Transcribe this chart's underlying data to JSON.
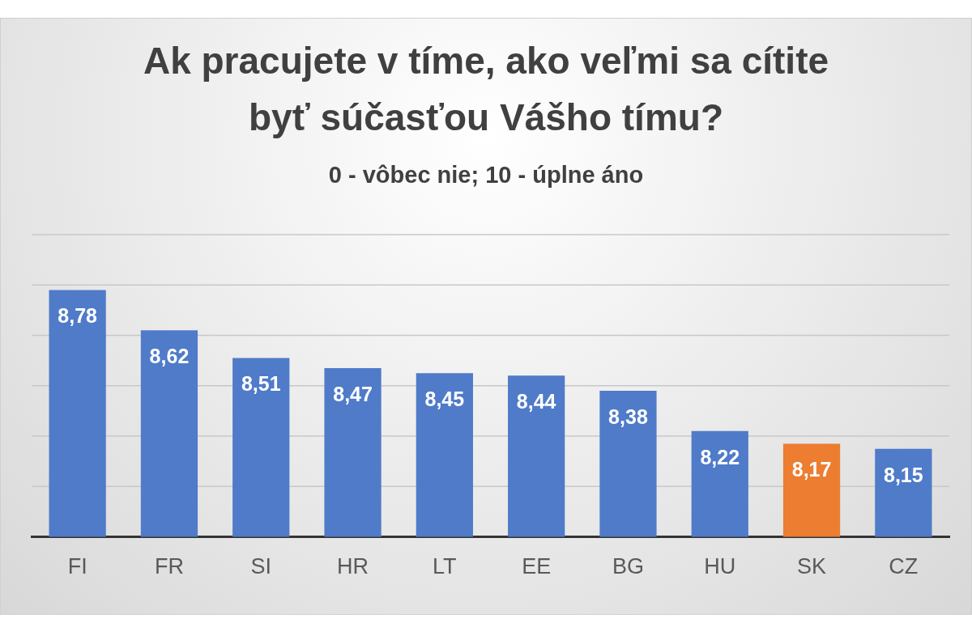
{
  "chart_data": {
    "type": "bar",
    "title": "Ak pracujete v tíme, ako veľmi sa cítite byť súčasťou Vášho tímu?",
    "subtitle": "0 - vôbec nie; 10 - úplne áno",
    "categories": [
      "FI",
      "FR",
      "SI",
      "HR",
      "LT",
      "EE",
      "BG",
      "HU",
      "SK",
      "CZ"
    ],
    "values": [
      8.78,
      8.62,
      8.51,
      8.47,
      8.45,
      8.44,
      8.38,
      8.22,
      8.17,
      8.15
    ],
    "colors": [
      "#4f7bc9",
      "#4f7bc9",
      "#4f7bc9",
      "#4f7bc9",
      "#4f7bc9",
      "#4f7bc9",
      "#4f7bc9",
      "#4f7bc9",
      "#ed7d31",
      "#4f7bc9"
    ],
    "value_labels": [
      "8,78",
      "8,62",
      "8,51",
      "8,47",
      "8,45",
      "8,44",
      "8,38",
      "8,22",
      "8,17",
      "8,15"
    ],
    "ylim": [
      7.8,
      9.0
    ],
    "ref_lines": [
      {
        "axis": "y",
        "value": 8.0,
        "color": "#c8c8c8"
      },
      {
        "axis": "y",
        "value": 8.2,
        "color": "#c8c8c8"
      },
      {
        "axis": "y",
        "value": 8.4,
        "color": "#c8c8c8"
      },
      {
        "axis": "y",
        "value": 8.6,
        "color": "#c8c8c8"
      },
      {
        "axis": "y",
        "value": 8.8,
        "color": "#c8c8c8"
      },
      {
        "axis": "y",
        "value": 9.0,
        "color": "#c8c8c8"
      }
    ],
    "legend": false
  }
}
